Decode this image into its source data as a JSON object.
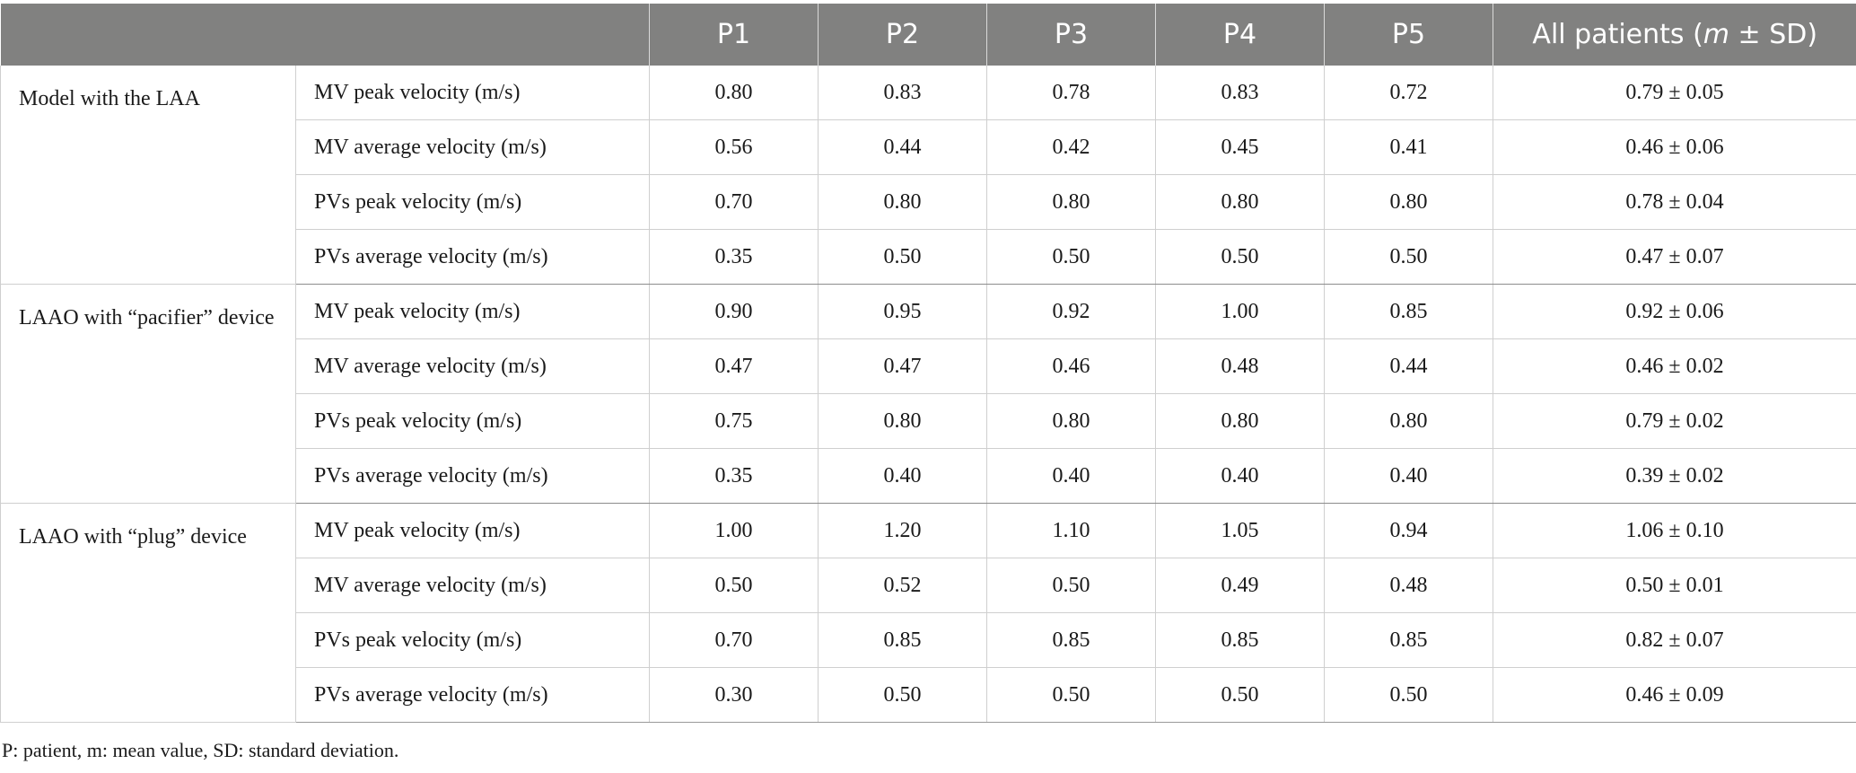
{
  "header": {
    "blank": "",
    "p1": "P1",
    "p2": "P2",
    "p3": "P3",
    "p4": "P4",
    "p5": "P5",
    "all_prefix": "All patients (",
    "all_m": "m",
    "all_suffix": " ± SD)"
  },
  "groups": [
    {
      "label": "Model with the LAA",
      "rows": [
        {
          "metric": "MV peak velocity (m/s)",
          "values": [
            "0.80",
            "0.83",
            "0.78",
            "0.83",
            "0.72"
          ],
          "all": "0.79 ± 0.05"
        },
        {
          "metric": "MV average velocity (m/s)",
          "values": [
            "0.56",
            "0.44",
            "0.42",
            "0.45",
            "0.41"
          ],
          "all": "0.46 ± 0.06"
        },
        {
          "metric": "PVs peak velocity (m/s)",
          "values": [
            "0.70",
            "0.80",
            "0.80",
            "0.80",
            "0.80"
          ],
          "all": "0.78 ± 0.04"
        },
        {
          "metric": "PVs average velocity (m/s)",
          "values": [
            "0.35",
            "0.50",
            "0.50",
            "0.50",
            "0.50"
          ],
          "all": "0.47 ± 0.07"
        }
      ]
    },
    {
      "label": "LAAO with “pacifier” device",
      "rows": [
        {
          "metric": "MV peak velocity (m/s)",
          "values": [
            "0.90",
            "0.95",
            "0.92",
            "1.00",
            "0.85"
          ],
          "all": "0.92 ± 0.06"
        },
        {
          "metric": "MV average velocity (m/s)",
          "values": [
            "0.47",
            "0.47",
            "0.46",
            "0.48",
            "0.44"
          ],
          "all": "0.46 ± 0.02"
        },
        {
          "metric": "PVs peak velocity (m/s)",
          "values": [
            "0.75",
            "0.80",
            "0.80",
            "0.80",
            "0.80"
          ],
          "all": "0.79 ± 0.02"
        },
        {
          "metric": "PVs average velocity (m/s)",
          "values": [
            "0.35",
            "0.40",
            "0.40",
            "0.40",
            "0.40"
          ],
          "all": "0.39 ± 0.02"
        }
      ]
    },
    {
      "label": "LAAO with “plug” device",
      "rows": [
        {
          "metric": "MV peak velocity (m/s)",
          "values": [
            "1.00",
            "1.20",
            "1.10",
            "1.05",
            "0.94"
          ],
          "all": "1.06 ± 0.10"
        },
        {
          "metric": "MV average velocity (m/s)",
          "values": [
            "0.50",
            "0.52",
            "0.50",
            "0.49",
            "0.48"
          ],
          "all": "0.50 ± 0.01"
        },
        {
          "metric": "PVs peak velocity (m/s)",
          "values": [
            "0.70",
            "0.85",
            "0.85",
            "0.85",
            "0.85"
          ],
          "all": "0.82 ± 0.07"
        },
        {
          "metric": "PVs average velocity (m/s)",
          "values": [
            "0.30",
            "0.50",
            "0.50",
            "0.50",
            "0.50"
          ],
          "all": "0.46 ± 0.09"
        }
      ]
    }
  ],
  "footnote": "P: patient, m: mean value, SD: standard deviation.",
  "colors": {
    "header_bg": "#818180",
    "header_text": "#ffffff",
    "grid": "#cfcfcf"
  }
}
